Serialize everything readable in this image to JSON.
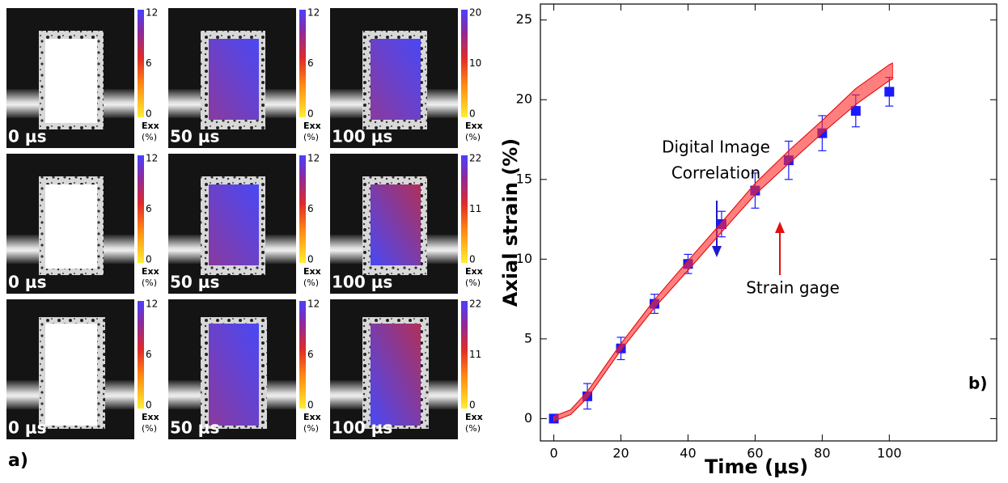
{
  "panel_a": {
    "label": "a)",
    "rows": [
      [
        {
          "time": "0 μs",
          "cbar_ticks": [
            12,
            6,
            0
          ],
          "cbar_title": "Exx",
          "cbar_unit": "(%)"
        },
        {
          "time": "50 μs",
          "cbar_ticks": [
            12,
            6,
            0
          ],
          "cbar_title": "Exx",
          "cbar_unit": "(%)"
        },
        {
          "time": "100 μs",
          "cbar_ticks": [
            20,
            10,
            0
          ],
          "cbar_title": "Exx",
          "cbar_unit": "(%)"
        }
      ],
      [
        {
          "time": "0 μs",
          "cbar_ticks": [
            12,
            6,
            0
          ],
          "cbar_title": "Exx",
          "cbar_unit": "(%)"
        },
        {
          "time": "50 μs",
          "cbar_ticks": [
            12,
            6,
            0
          ],
          "cbar_title": "Exx",
          "cbar_unit": "(%)"
        },
        {
          "time": "100 μs",
          "cbar_ticks": [
            22,
            11,
            0
          ],
          "cbar_title": "Exx",
          "cbar_unit": "(%)"
        }
      ],
      [
        {
          "time": "0 μs",
          "cbar_ticks": [
            12,
            6,
            0
          ],
          "cbar_title": "Exx",
          "cbar_unit": "(%)"
        },
        {
          "time": "50 μs",
          "cbar_ticks": [
            12,
            6,
            0
          ],
          "cbar_title": "Exx",
          "cbar_unit": "(%)"
        },
        {
          "time": "100 μs",
          "cbar_ticks": [
            22,
            11,
            0
          ],
          "cbar_title": "Exx",
          "cbar_unit": "(%)"
        }
      ]
    ]
  },
  "chart_data": {
    "type": "scatter",
    "label": "b)",
    "x_label": "Time (μs)",
    "y_label": "Axial strain (%)",
    "xlim": [
      -4,
      132
    ],
    "ylim": [
      -1.4,
      26
    ],
    "xticks": [
      0,
      20,
      40,
      60,
      80,
      100
    ],
    "yticks": [
      0,
      5,
      10,
      15,
      20,
      25
    ],
    "annotations": [
      {
        "lines": [
          "Digital Image",
          "Correlation"
        ]
      },
      {
        "lines": [
          "Strain gage"
        ]
      }
    ],
    "series": [
      {
        "color": "#1a1aff",
        "x": [
          0,
          10,
          20,
          30,
          40,
          50,
          60,
          70,
          80,
          90,
          100
        ],
        "values": [
          0,
          1.4,
          4.4,
          7.2,
          9.7,
          12.2,
          14.3,
          16.2,
          17.9,
          19.3,
          20.5
        ],
        "errors": [
          0,
          0.8,
          0.7,
          0.6,
          0.6,
          0.8,
          1.1,
          1.2,
          1.1,
          1.0,
          0.9
        ]
      },
      {
        "color": "#ff2a2a",
        "x": [
          0,
          5,
          10,
          15,
          20,
          30,
          40,
          50,
          60,
          70,
          80,
          90,
          100,
          101
        ],
        "lower": [
          -0.15,
          0.25,
          1.3,
          2.8,
          4.3,
          6.95,
          9.3,
          11.7,
          14.05,
          16.0,
          17.9,
          19.7,
          21.2,
          21.3
        ],
        "upper": [
          0.15,
          0.55,
          1.7,
          3.2,
          4.7,
          7.45,
          9.9,
          12.3,
          14.75,
          16.8,
          18.7,
          20.7,
          22.2,
          22.3
        ]
      }
    ]
  }
}
